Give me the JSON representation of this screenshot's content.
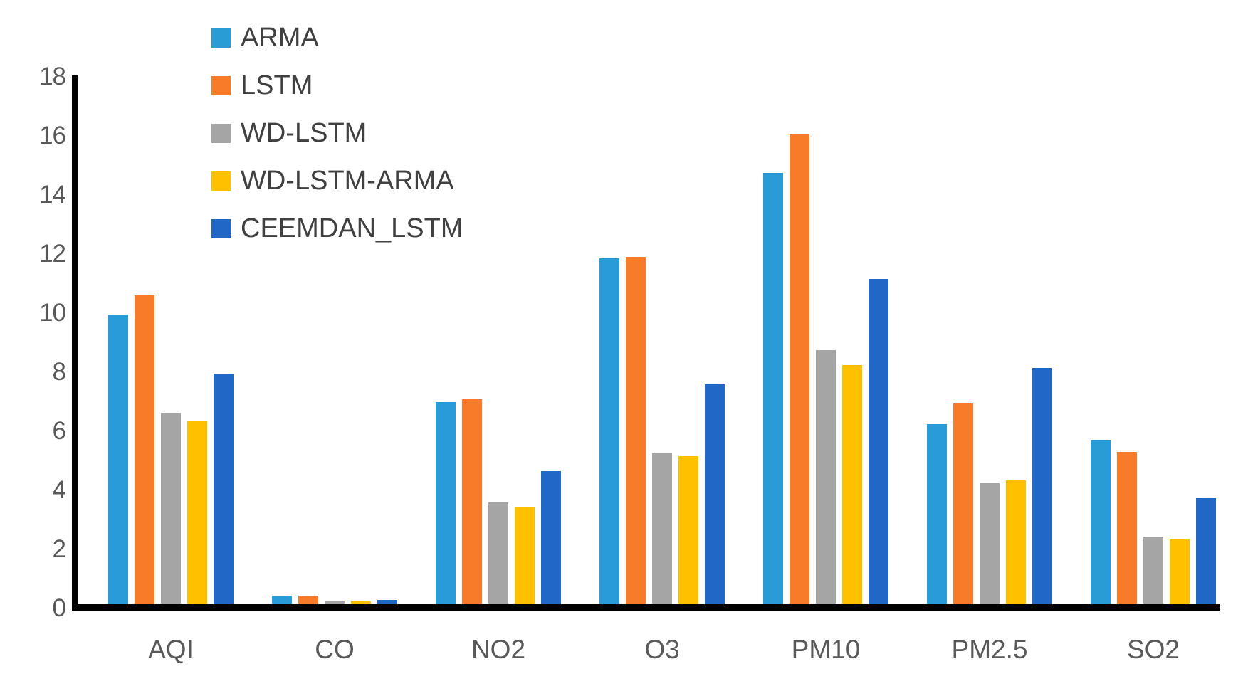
{
  "chart_data": {
    "type": "bar",
    "title": "",
    "categories": [
      "AQI",
      "CO",
      "NO2",
      "O3",
      "PM10",
      "PM2.5",
      "SO2"
    ],
    "series": [
      {
        "name": "ARMA",
        "color": "#299CD8",
        "values": [
          9.8,
          0.3,
          6.85,
          11.7,
          14.6,
          6.1,
          5.55
        ]
      },
      {
        "name": "LSTM",
        "color": "#F77B28",
        "values": [
          10.45,
          0.3,
          6.95,
          11.75,
          15.9,
          6.8,
          5.15
        ]
      },
      {
        "name": "WD-LSTM",
        "color": "#A5A5A5",
        "values": [
          6.45,
          0.1,
          3.45,
          5.1,
          8.6,
          4.1,
          2.3
        ]
      },
      {
        "name": "WD-LSTM-ARMA",
        "color": "#FFC000",
        "values": [
          6.2,
          0.1,
          3.3,
          5.0,
          8.1,
          4.2,
          2.2
        ]
      },
      {
        "name": "CEEMDAN_LSTM",
        "color": "#2167C5",
        "values": [
          7.8,
          0.15,
          4.5,
          7.45,
          11.0,
          8.0,
          3.6
        ]
      }
    ],
    "ylim": [
      0,
      18
    ],
    "yticks": [
      0,
      2,
      4,
      6,
      8,
      10,
      12,
      14,
      16,
      18
    ],
    "grid": false,
    "legend_position": "top-left",
    "axis_color": "#000000",
    "tick_label_color": "#595959"
  }
}
